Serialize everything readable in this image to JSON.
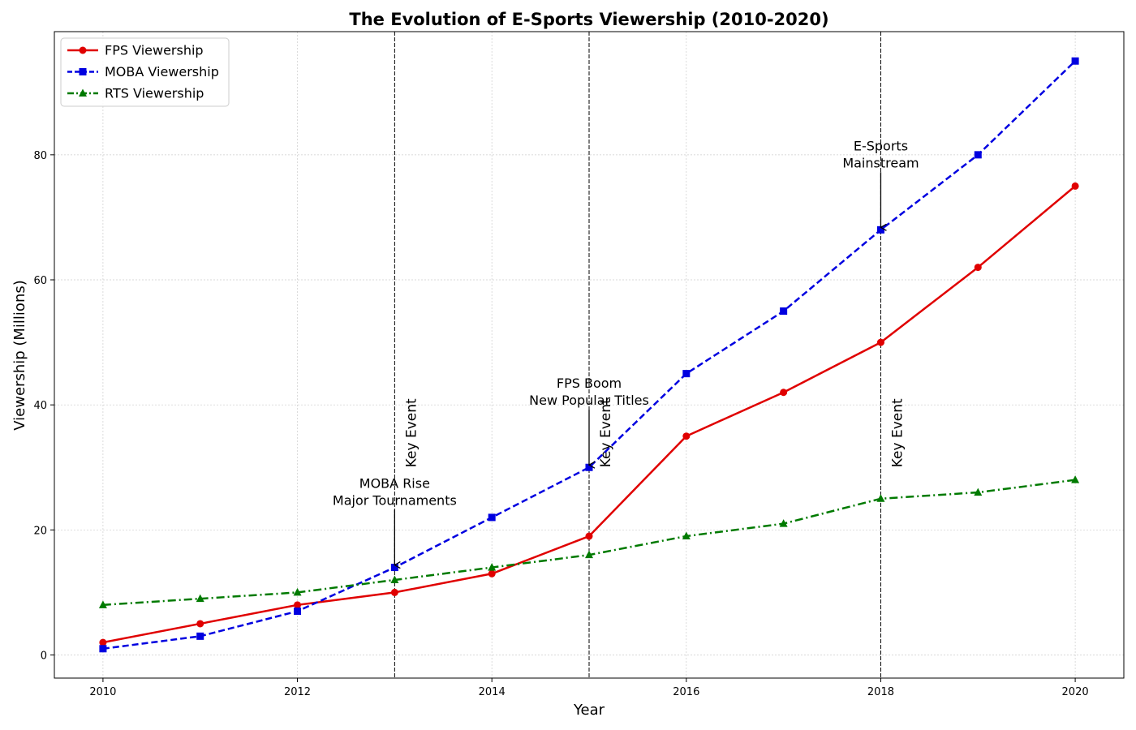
{
  "chart_data": {
    "type": "line",
    "title": "The Evolution of E-Sports Viewership (2010-2020)",
    "xlabel": "Year",
    "ylabel": "Viewership (Millions)",
    "x": [
      2010,
      2011,
      2012,
      2013,
      2014,
      2015,
      2016,
      2017,
      2018,
      2019,
      2020
    ],
    "xlim": [
      2009.5,
      2020.5
    ],
    "ylim": [
      -3.7,
      99.7
    ],
    "xticks": [
      "2010",
      "2012",
      "2014",
      "2016",
      "2018",
      "2020"
    ],
    "yticks": [
      "0",
      "20",
      "40",
      "60",
      "80"
    ],
    "grid": true,
    "legend_position": "top-left",
    "series": [
      {
        "name": "FPS Viewership",
        "color": "#e00000",
        "marker": "circle",
        "linestyle": "solid",
        "values": [
          2,
          5,
          8,
          10,
          13,
          19,
          35,
          42,
          50,
          62,
          75
        ]
      },
      {
        "name": "MOBA Viewership",
        "color": "#0000e0",
        "marker": "square",
        "linestyle": "dashed",
        "values": [
          1,
          3,
          7,
          14,
          22,
          30,
          45,
          55,
          68,
          80,
          95
        ]
      },
      {
        "name": "RTS Viewership",
        "color": "#007a00",
        "marker": "triangle",
        "linestyle": "dashdot",
        "values": [
          8,
          9,
          10,
          12,
          14,
          16,
          19,
          21,
          25,
          26,
          28
        ]
      }
    ],
    "vlines": [
      {
        "x": 2013,
        "label": "Key Event"
      },
      {
        "x": 2015,
        "label": "Key Event"
      },
      {
        "x": 2018,
        "label": "Key Event"
      }
    ],
    "annotations": [
      {
        "lines": [
          "MOBA Rise",
          "Major Tournaments"
        ],
        "x": 2013,
        "y": 14,
        "text_y": 24
      },
      {
        "lines": [
          "FPS Boom",
          "New Popular Titles"
        ],
        "x": 2015,
        "y": 30,
        "text_y": 40
      },
      {
        "lines": [
          "E-Sports",
          "Mainstream"
        ],
        "x": 2018,
        "y": 68,
        "text_y": 78
      }
    ]
  }
}
